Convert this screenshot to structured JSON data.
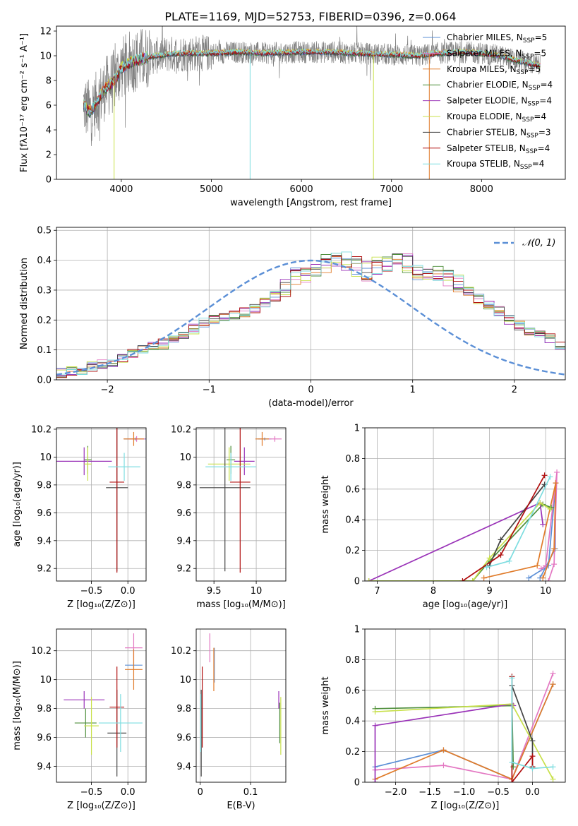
{
  "figure": {
    "title": "PLATE=1169, MJD=52753, FIBERID=0396, z=0.064"
  },
  "colors": {
    "Chabrier MILES": "#5b8fd6",
    "Salpeter MILES": "#e377c2",
    "Kroupa MILES": "#e07b2a",
    "Chabrier ELODIE": "#4f8f3c",
    "Salpeter ELODIE": "#9a33b8",
    "Kroupa ELODIE": "#c8e04a",
    "Chabrier STELIB": "#444444",
    "Salpeter STELIB": "#b00f0f",
    "Kroupa STELIB": "#7ddde0",
    "normal": "#5b8fd6",
    "data": "#808080"
  },
  "chart_data": [
    {
      "id": "spectrum",
      "type": "line",
      "xlabel": "wavelength [Angstrom, rest frame]",
      "ylabel": "Flux [fλ10⁻¹⁷ erg cm⁻² s⁻¹ A⁻¹]",
      "xlim": [
        3280,
        8930
      ],
      "ylim": [
        0,
        12.4
      ],
      "xticks": [
        4000,
        5000,
        6000,
        7000,
        8000
      ],
      "yticks": [
        0,
        2,
        4,
        6,
        8,
        10,
        12
      ],
      "continuum": {
        "x": [
          3580,
          3650,
          3700,
          3780,
          3850,
          3900,
          3950,
          4000,
          4100,
          4200,
          4300,
          4400,
          4500,
          4700,
          5000,
          5300,
          5600,
          6000,
          6300,
          6600,
          7000,
          7300,
          7500,
          7800,
          8000,
          8200,
          8400,
          8650
        ],
        "y": [
          6.0,
          5.5,
          5.9,
          6.9,
          7.6,
          7.8,
          8.3,
          9.0,
          9.5,
          9.7,
          9.9,
          10.0,
          10.1,
          10.2,
          10.2,
          10.3,
          10.2,
          10.3,
          10.3,
          10.2,
          10.1,
          10.0,
          10.2,
          10.3,
          10.2,
          10.0,
          9.6,
          9.2
        ]
      },
      "legend": [
        {
          "name": "Chabrier MILES",
          "sub": "SSP",
          "label": "N",
          "value": "=5"
        },
        {
          "name": "Salpeter MILES",
          "sub": "SSP",
          "label": "N",
          "value": "=5"
        },
        {
          "name": "Kroupa MILES",
          "sub": "SSP",
          "label": "N",
          "value": "=5"
        },
        {
          "name": "Chabrier ELODIE",
          "sub": "SSP",
          "label": "N",
          "value": "=4"
        },
        {
          "name": "Salpeter ELODIE",
          "sub": "SSP",
          "label": "N",
          "value": "=4"
        },
        {
          "name": "Kroupa ELODIE",
          "sub": "SSP",
          "label": "N",
          "value": "=4"
        },
        {
          "name": "Chabrier STELIB",
          "sub": "SSP",
          "label": "N",
          "value": "=3"
        },
        {
          "name": "Salpeter STELIB",
          "sub": "SSP",
          "label": "N",
          "value": "=4"
        },
        {
          "name": "Kroupa STELIB",
          "sub": "SSP",
          "label": "N",
          "value": "=4"
        }
      ],
      "grid": false,
      "legend_position": "top-right"
    },
    {
      "id": "residuals",
      "type": "area",
      "xlabel": "(data-model)/error",
      "ylabel": "Normed distribution",
      "xlim": [
        -2.5,
        2.5
      ],
      "ylim": [
        0,
        0.51
      ],
      "xticks": [
        -2,
        -1,
        0,
        1,
        2
      ],
      "xtick_labels": [
        "−2",
        "−1",
        "0",
        "1",
        "2"
      ],
      "yticks": [
        0,
        0.1,
        0.2,
        0.3,
        0.4,
        0.5
      ],
      "ytick_labels": [
        "0.0",
        "0.1",
        "0.2",
        "0.3",
        "0.4",
        "0.5"
      ],
      "bins_start": -2.5,
      "bin_width": 0.1,
      "hist_mean": [
        0.025,
        0.03,
        0.035,
        0.045,
        0.055,
        0.06,
        0.075,
        0.09,
        0.1,
        0.115,
        0.12,
        0.135,
        0.15,
        0.17,
        0.19,
        0.2,
        0.215,
        0.215,
        0.225,
        0.24,
        0.26,
        0.28,
        0.31,
        0.34,
        0.36,
        0.38,
        0.39,
        0.4,
        0.4,
        0.38,
        0.36,
        0.38,
        0.39,
        0.4,
        0.39,
        0.36,
        0.35,
        0.355,
        0.34,
        0.32,
        0.3,
        0.27,
        0.25,
        0.23,
        0.2,
        0.18,
        0.16,
        0.15,
        0.14,
        0.12,
        0.11,
        0.1,
        0.09,
        0.075,
        0.06,
        0.05,
        0.04,
        0.035,
        0.03,
        0.025
      ],
      "legend": "𝒩(0, 1)",
      "grid": true,
      "legend_position": "top-right"
    },
    {
      "id": "age-vs-Z",
      "type": "scatter",
      "xlabel": "Z [log₁₀(Z/Z⊙)]",
      "ylabel": "age  [log₁₀(age/yr)]",
      "xlim": [
        -0.98,
        0.25
      ],
      "ylim": [
        9.11,
        10.21
      ],
      "xticks": [
        -0.5,
        0.0
      ],
      "xtick_labels": [
        "−0.5",
        "0.0"
      ],
      "yticks": [
        9.2,
        9.4,
        9.6,
        9.8,
        10.0,
        10.2
      ],
      "points": [
        {
          "model": "Chabrier MILES",
          "x": 0.1,
          "y": 10.13,
          "xerr": 0.15,
          "yerr": 0.01
        },
        {
          "model": "Salpeter MILES",
          "x": 0.12,
          "y": 10.13,
          "xerr": 0.12,
          "yerr": 0.02
        },
        {
          "model": "Kroupa MILES",
          "x": 0.08,
          "y": 10.13,
          "xerr": 0.14,
          "yerr": 0.05
        },
        {
          "model": "Chabrier ELODIE",
          "x": -0.55,
          "y": 9.98,
          "xerr": 0.05,
          "yerr": 0.1
        },
        {
          "model": "Salpeter ELODIE",
          "x": -0.6,
          "y": 9.97,
          "xerr": 0.38,
          "yerr": 0.1
        },
        {
          "model": "Kroupa ELODIE",
          "x": -0.55,
          "y": 9.95,
          "xerr": 0.05,
          "yerr": 0.12
        },
        {
          "model": "Chabrier STELIB",
          "x": -0.15,
          "y": 9.78,
          "xerr": 0.15,
          "yerr": 0.6
        },
        {
          "model": "Salpeter STELIB",
          "x": -0.15,
          "y": 9.82,
          "xerr": 0.1,
          "yerr": 0.65
        },
        {
          "model": "Kroupa STELIB",
          "x": -0.05,
          "y": 9.93,
          "xerr": 0.22,
          "yerr": 0.1
        }
      ]
    },
    {
      "id": "age-vs-mass",
      "type": "scatter",
      "xlabel": "mass [log₁₀(M/M⊙)]",
      "ylabel": "",
      "xlim": [
        9.29,
        10.35
      ],
      "ylim": [
        9.11,
        10.21
      ],
      "xticks": [
        9.5,
        10.0
      ],
      "yticks": [
        9.2,
        9.4,
        9.6,
        9.8,
        10.0,
        10.2
      ],
      "points": [
        {
          "model": "Chabrier MILES",
          "x": 10.1,
          "y": 10.13,
          "xerr": 0.08,
          "yerr": 0.01
        },
        {
          "model": "Salpeter MILES",
          "x": 10.22,
          "y": 10.13,
          "xerr": 0.08,
          "yerr": 0.02
        },
        {
          "model": "Kroupa MILES",
          "x": 10.07,
          "y": 10.13,
          "xerr": 0.08,
          "yerr": 0.05
        },
        {
          "model": "Chabrier ELODIE",
          "x": 9.7,
          "y": 9.98,
          "xerr": 0.05,
          "yerr": 0.1
        },
        {
          "model": "Salpeter ELODIE",
          "x": 9.86,
          "y": 9.97,
          "xerr": 0.12,
          "yerr": 0.1
        },
        {
          "model": "Kroupa ELODIE",
          "x": 9.68,
          "y": 9.95,
          "xerr": 0.25,
          "yerr": 0.12
        },
        {
          "model": "Chabrier STELIB",
          "x": 9.63,
          "y": 9.78,
          "xerr": 0.3,
          "yerr": 0.6
        },
        {
          "model": "Salpeter STELIB",
          "x": 9.81,
          "y": 9.82,
          "xerr": 0.12,
          "yerr": 0.65
        },
        {
          "model": "Kroupa STELIB",
          "x": 9.7,
          "y": 9.93,
          "xerr": 0.3,
          "yerr": 0.1
        }
      ]
    },
    {
      "id": "mass-weight-vs-age",
      "type": "line",
      "xlabel": "age  [log₁₀(age/yr)]",
      "ylabel": "mass weight",
      "xlim": [
        6.78,
        10.35
      ],
      "ylim": [
        0,
        1
      ],
      "xticks": [
        7,
        8,
        9,
        10
      ],
      "yticks": [
        0,
        0.2,
        0.4,
        0.6,
        0.8,
        1.0
      ],
      "series": [
        {
          "model": "Chabrier MILES",
          "x": [
            9.7,
            10.05,
            10.18,
            10.17,
            9.9
          ],
          "y": [
            0.02,
            0.1,
            0.64,
            0.21,
            0.02
          ]
        },
        {
          "model": "Salpeter MILES",
          "x": [
            9.92,
            10.0,
            10.2,
            10.15,
            10.05
          ],
          "y": [
            0.08,
            0.1,
            0.71,
            0.11,
            0.0
          ]
        },
        {
          "model": "Kroupa MILES",
          "x": [
            8.9,
            9.85,
            10.18,
            10.15,
            9.95
          ],
          "y": [
            0.02,
            0.1,
            0.64,
            0.21,
            0.02
          ]
        },
        {
          "model": "Chabrier ELODIE",
          "x": [
            6.85,
            8.7,
            9.0,
            9.95,
            10.1
          ],
          "y": [
            0.0,
            0.0,
            0.13,
            0.5,
            0.48
          ]
        },
        {
          "model": "Salpeter ELODIE",
          "x": [
            6.85,
            9.9,
            9.95
          ],
          "y": [
            0.0,
            0.51,
            0.37
          ]
        },
        {
          "model": "Kroupa ELODIE",
          "x": [
            6.85,
            8.7,
            9.0,
            9.9,
            10.08
          ],
          "y": [
            0.0,
            0.0,
            0.15,
            0.51,
            0.47
          ]
        },
        {
          "model": "Chabrier STELIB",
          "x": [
            9.0,
            9.2,
            9.98
          ],
          "y": [
            0.1,
            0.27,
            0.63
          ]
        },
        {
          "model": "Salpeter STELIB",
          "x": [
            8.52,
            9.2,
            9.98
          ],
          "y": [
            0.0,
            0.17,
            0.69
          ]
        },
        {
          "model": "Kroupa STELIB",
          "x": [
            8.95,
            9.35,
            10.08
          ],
          "y": [
            0.09,
            0.13,
            0.68
          ]
        }
      ]
    },
    {
      "id": "mass-vs-Z",
      "type": "scatter",
      "xlabel": "Z [log₁₀(Z/Z⊙)]",
      "ylabel": "mass [log₁₀(M/M⊙)]",
      "xlim": [
        -0.98,
        0.25
      ],
      "ylim": [
        9.29,
        10.35
      ],
      "xticks": [
        -0.5,
        0.0
      ],
      "xtick_labels": [
        "−0.5",
        "0.0"
      ],
      "yticks": [
        9.4,
        9.6,
        9.8,
        10.0,
        10.2
      ],
      "points": [
        {
          "model": "Chabrier MILES",
          "x": 0.08,
          "y": 10.1,
          "xerr": 0.12,
          "yerr": 0.02
        },
        {
          "model": "Salpeter MILES",
          "x": 0.08,
          "y": 10.22,
          "xerr": 0.12,
          "yerr": 0.1
        },
        {
          "model": "Kroupa MILES",
          "x": 0.08,
          "y": 10.07,
          "xerr": 0.12,
          "yerr": 0.14
        },
        {
          "model": "Chabrier ELODIE",
          "x": -0.58,
          "y": 9.7,
          "xerr": 0.15,
          "yerr": 0.1
        },
        {
          "model": "Salpeter ELODIE",
          "x": -0.6,
          "y": 9.86,
          "xerr": 0.28,
          "yerr": 0.06
        },
        {
          "model": "Kroupa ELODIE",
          "x": -0.5,
          "y": 9.68,
          "xerr": 0.1,
          "yerr": 0.2
        },
        {
          "model": "Chabrier STELIB",
          "x": -0.15,
          "y": 9.63,
          "xerr": 0.13,
          "yerr": 0.3
        },
        {
          "model": "Salpeter STELIB",
          "x": -0.15,
          "y": 9.81,
          "xerr": 0.1,
          "yerr": 0.28
        },
        {
          "model": "Kroupa STELIB",
          "x": -0.1,
          "y": 9.7,
          "xerr": 0.3,
          "yerr": 0.2
        }
      ]
    },
    {
      "id": "mass-vs-EBV",
      "type": "scatter",
      "xlabel": "E(B-V)",
      "ylabel": "",
      "xlim": [
        -0.008,
        0.17
      ],
      "ylim": [
        9.29,
        10.35
      ],
      "xticks": [
        0.0,
        0.1
      ],
      "yticks": [
        9.4,
        9.6,
        9.8,
        10.0,
        10.2
      ],
      "points": [
        {
          "model": "Chabrier MILES",
          "x": 0.028,
          "y": 10.1,
          "xerr": 0.0,
          "yerr": 0.12
        },
        {
          "model": "Salpeter MILES",
          "x": 0.019,
          "y": 10.22,
          "xerr": 0.0,
          "yerr": 0.1
        },
        {
          "model": "Kroupa MILES",
          "x": 0.027,
          "y": 10.07,
          "xerr": 0.0,
          "yerr": 0.15
        },
        {
          "model": "Chabrier ELODIE",
          "x": 0.158,
          "y": 9.7,
          "xerr": 0.0,
          "yerr": 0.14
        },
        {
          "model": "Salpeter ELODIE",
          "x": 0.156,
          "y": 9.86,
          "xerr": 0.0,
          "yerr": 0.06
        },
        {
          "model": "Kroupa ELODIE",
          "x": 0.16,
          "y": 9.68,
          "xerr": 0.0,
          "yerr": 0.2
        },
        {
          "model": "Chabrier STELIB",
          "x": 0.002,
          "y": 9.63,
          "xerr": 0.0,
          "yerr": 0.3
        },
        {
          "model": "Salpeter STELIB",
          "x": 0.004,
          "y": 9.81,
          "xerr": 0.0,
          "yerr": 0.28
        },
        {
          "model": "Kroupa STELIB",
          "x": 0.001,
          "y": 9.7,
          "xerr": 0.0,
          "yerr": 0.2
        }
      ]
    },
    {
      "id": "mass-weight-vs-Z",
      "type": "line",
      "xlabel": "Z [log₁₀(Z/Z⊙)]",
      "ylabel": "mass weight",
      "xlim": [
        -2.45,
        0.48
      ],
      "ylim": [
        0,
        1
      ],
      "xticks": [
        -2.0,
        -1.5,
        -1.0,
        -0.5,
        0.0
      ],
      "xtick_labels": [
        "−2.0",
        "−1.5",
        "−1.0",
        "−0.5",
        "0.0"
      ],
      "yticks": [
        0,
        0.2,
        0.4,
        0.6,
        0.8,
        1.0
      ],
      "series": [
        {
          "model": "Chabrier MILES",
          "x": [
            -2.3,
            -1.3,
            -0.3,
            0.3
          ],
          "y": [
            0.1,
            0.21,
            0.02,
            0.64
          ]
        },
        {
          "model": "Salpeter MILES",
          "x": [
            -2.3,
            -1.3,
            -0.3,
            0.3
          ],
          "y": [
            0.08,
            0.11,
            0.02,
            0.71
          ]
        },
        {
          "model": "Kroupa MILES",
          "x": [
            -2.3,
            -1.3,
            -0.3,
            0.3
          ],
          "y": [
            0.02,
            0.21,
            0.02,
            0.64
          ]
        },
        {
          "model": "Chabrier ELODIE",
          "x": [
            -2.3,
            -0.3,
            -0.28
          ],
          "y": [
            0.48,
            0.5,
            0.1
          ]
        },
        {
          "model": "Salpeter ELODIE",
          "x": [
            -2.3,
            -2.3,
            -0.3,
            -0.28
          ],
          "y": [
            0.0,
            0.37,
            0.51,
            0.5
          ]
        },
        {
          "model": "Kroupa ELODIE",
          "x": [
            -2.3,
            -0.3,
            0.3
          ],
          "y": [
            0.46,
            0.51,
            0.02
          ]
        },
        {
          "model": "Chabrier STELIB",
          "x": [
            -0.3,
            0.0,
            0.0
          ],
          "y": [
            0.63,
            0.27,
            0.1
          ]
        },
        {
          "model": "Salpeter STELIB",
          "x": [
            -0.3,
            -0.3,
            0.0,
            0.0
          ],
          "y": [
            0.69,
            0.0,
            0.17,
            0.1
          ]
        },
        {
          "model": "Kroupa STELIB",
          "x": [
            -0.3,
            -0.3,
            0.0,
            0.3
          ],
          "y": [
            0.68,
            0.13,
            0.09,
            0.1
          ]
        }
      ]
    }
  ]
}
